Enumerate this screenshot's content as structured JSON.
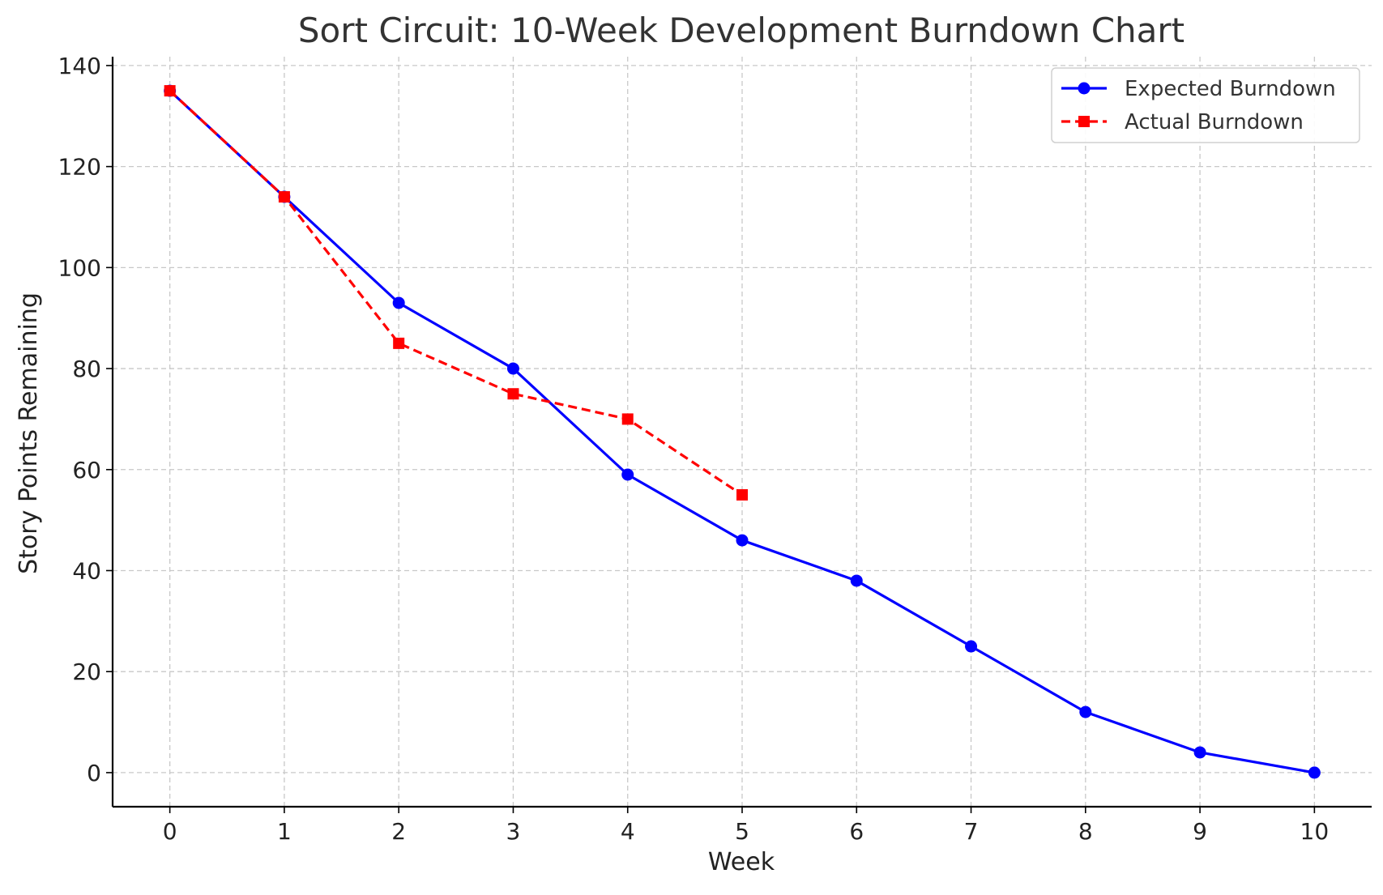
{
  "chart_data": {
    "type": "line",
    "title": "Sort Circuit: 10-Week Development Burndown Chart",
    "xlabel": "Week",
    "ylabel": "Story Points Remaining",
    "x_ticks": [
      0,
      1,
      2,
      3,
      4,
      5,
      6,
      7,
      8,
      9,
      10
    ],
    "y_ticks": [
      0,
      20,
      40,
      60,
      80,
      100,
      120,
      140
    ],
    "xlim": [
      -0.5,
      10.5
    ],
    "ylim": [
      -6.75,
      141.75
    ],
    "grid": true,
    "legend_position": "top-right",
    "series": [
      {
        "name": "Expected Burndown",
        "color": "#0000ff",
        "line_style": "solid",
        "marker": "circle",
        "x": [
          0,
          1,
          2,
          3,
          4,
          5,
          6,
          7,
          8,
          9,
          10
        ],
        "y": [
          135,
          114,
          93,
          80,
          59,
          46,
          38,
          25,
          12,
          4,
          0
        ]
      },
      {
        "name": "Actual Burndown",
        "color": "#ff0000",
        "line_style": "dashed",
        "marker": "square",
        "x": [
          0,
          1,
          2,
          3,
          4,
          5
        ],
        "y": [
          135,
          114,
          85,
          75,
          70,
          55
        ]
      }
    ]
  }
}
